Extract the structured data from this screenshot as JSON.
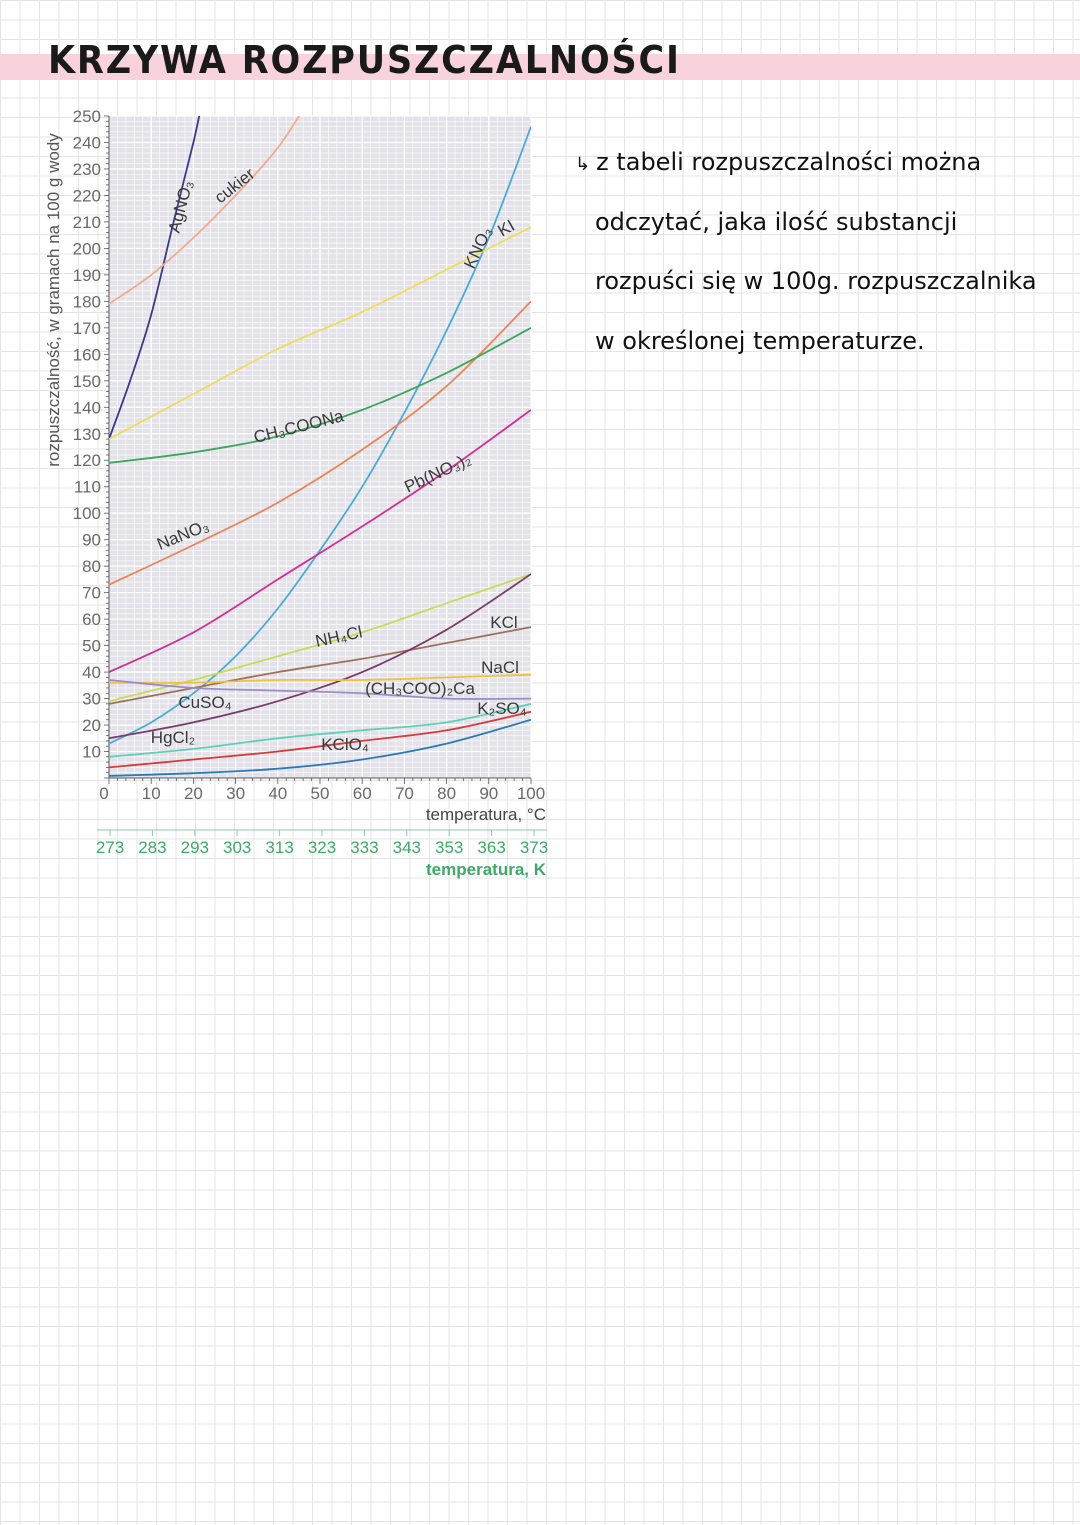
{
  "page": {
    "title": "KRZYWA ROZPUSZCZALNOŚCI",
    "note_arrow": "↳",
    "note_lines": [
      "z tabeli rozpuszczalności można",
      "odczytać, jaka ilość substancji",
      "rozpuści się w 100g. rozpuszczalnika",
      "w określonej temperaturze."
    ]
  },
  "chart_data": {
    "type": "line",
    "ylabel": "rozpuszczalność, w gramach na 100 g wody",
    "xlabel": "temperatura, °C",
    "x2label": "temperatura, K",
    "xlim": [
      0,
      100
    ],
    "ylim": [
      0,
      250
    ],
    "x_ticks": [
      "10",
      "20",
      "30",
      "40",
      "50",
      "60",
      "70",
      "80",
      "90",
      "100"
    ],
    "x_zero_label": "0",
    "y_ticks": [
      "10",
      "20",
      "30",
      "40",
      "50",
      "60",
      "70",
      "80",
      "90",
      "100",
      "110",
      "120",
      "130",
      "140",
      "150",
      "160",
      "170",
      "180",
      "190",
      "200",
      "210",
      "220",
      "230",
      "240",
      "250"
    ],
    "k_ticks": [
      "273",
      "283",
      "293",
      "303",
      "313",
      "323",
      "333",
      "343",
      "353",
      "363",
      "373"
    ],
    "grid": true,
    "series": [
      {
        "name": "AgNO3",
        "label": "AgNO₃",
        "color": "#3a3a8c",
        "x": [
          0,
          5,
          10,
          15,
          20,
          22
        ],
        "y": [
          128,
          150,
          175,
          208,
          240,
          255
        ]
      },
      {
        "name": "cukier",
        "label": "cukier",
        "color": "#f2ab8c",
        "x": [
          0,
          10,
          20,
          30,
          40,
          47
        ],
        "y": [
          179,
          190,
          204,
          220,
          238,
          255
        ]
      },
      {
        "name": "KNO3",
        "label": "KNO₃",
        "color": "#4aaad8",
        "x": [
          0,
          10,
          20,
          30,
          40,
          50,
          60,
          70,
          80,
          90,
          100
        ],
        "y": [
          13,
          21,
          32,
          46,
          64,
          86,
          110,
          138,
          169,
          204,
          246
        ]
      },
      {
        "name": "KI",
        "label": "KI",
        "color": "#f0dc5a",
        "x": [
          0,
          20,
          40,
          60,
          80,
          100
        ],
        "y": [
          128,
          145,
          162,
          176,
          192,
          208
        ]
      },
      {
        "name": "NaNO3",
        "label": "NaNO₃",
        "color": "#ee8455",
        "x": [
          0,
          20,
          40,
          60,
          80,
          100
        ],
        "y": [
          73,
          88,
          104,
          124,
          148,
          180
        ]
      },
      {
        "name": "CH3COONa",
        "label": "CH₃COONa",
        "color": "#3aa85a",
        "x": [
          0,
          20,
          40,
          60,
          80,
          100
        ],
        "y": [
          119,
          123,
          129,
          139,
          153,
          170
        ]
      },
      {
        "name": "Pb(NO3)2",
        "label": "Pb(NO₃)₂",
        "color": "#d32e92",
        "x": [
          0,
          20,
          40,
          60,
          80,
          100
        ],
        "y": [
          40,
          55,
          75,
          95,
          116,
          139
        ]
      },
      {
        "name": "NH4Cl",
        "label": "NH₄Cl",
        "color": "#c5dd58",
        "x": [
          0,
          20,
          40,
          60,
          80,
          100
        ],
        "y": [
          29,
          37,
          46,
          55,
          66,
          77
        ]
      },
      {
        "name": "KCl",
        "label": "KCl",
        "color": "#a0705a",
        "x": [
          0,
          20,
          40,
          60,
          80,
          100
        ],
        "y": [
          28,
          34,
          40,
          45,
          51,
          57
        ]
      },
      {
        "name": "CuSO4",
        "label": "CuSO₄",
        "color": "#7b3a6a",
        "x": [
          0,
          20,
          40,
          60,
          80,
          100
        ],
        "y": [
          15,
          21,
          29,
          40,
          56,
          77
        ]
      },
      {
        "name": "NaCl",
        "label": "NaCl",
        "color": "#f2c040",
        "x": [
          0,
          20,
          40,
          60,
          80,
          100
        ],
        "y": [
          36,
          36,
          37,
          37,
          38,
          39
        ]
      },
      {
        "name": "(CH3COO)2Ca",
        "label": "(CH₃COO)₂Ca",
        "color": "#9a8ec8",
        "x": [
          0,
          20,
          40,
          60,
          80,
          100
        ],
        "y": [
          37,
          34,
          33,
          32,
          30,
          30
        ]
      },
      {
        "name": "K2SO4",
        "label": "K₂SO₄",
        "color": "#5fd0b8",
        "x": [
          0,
          20,
          40,
          60,
          80,
          100
        ],
        "y": [
          8,
          11,
          15,
          18,
          21,
          28
        ]
      },
      {
        "name": "HgCl2",
        "label": "HgCl₂",
        "color": "#d93a3a",
        "x": [
          0,
          20,
          40,
          60,
          80,
          100
        ],
        "y": [
          4,
          7,
          10,
          14,
          18,
          25
        ]
      },
      {
        "name": "KClO4",
        "label": "KClO₄",
        "color": "#2a7ab8",
        "x": [
          0,
          20,
          40,
          60,
          80,
          100
        ],
        "y": [
          0.8,
          1.8,
          3.5,
          7,
          13,
          22
        ]
      }
    ]
  }
}
